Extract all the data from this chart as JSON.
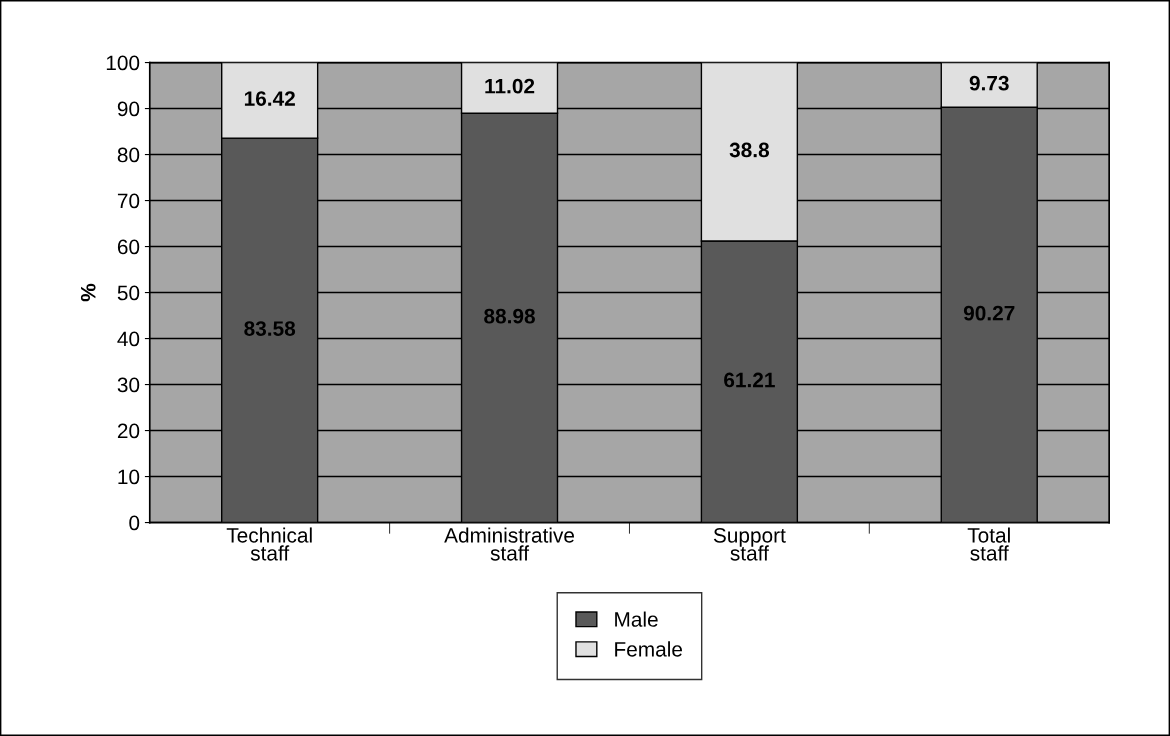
{
  "chart_data": {
    "type": "bar",
    "stacked": true,
    "ylabel": "%",
    "categories": [
      "Technical\nstaff",
      "Administrative\nstaff",
      "Support\nstaff",
      "Total\nstaff"
    ],
    "series": [
      {
        "name": "Male",
        "color": "#595959",
        "values": [
          83.58,
          88.98,
          61.21,
          90.27
        ]
      },
      {
        "name": "Female",
        "color": "#e0e0e0",
        "values": [
          16.42,
          11.02,
          38.8,
          9.73
        ]
      }
    ],
    "ylim": [
      0,
      100
    ],
    "yticks": [
      0,
      10,
      20,
      30,
      40,
      50,
      60,
      70,
      80,
      90,
      100
    ],
    "grid": "y",
    "legend": "bottom",
    "data_labels": true
  }
}
